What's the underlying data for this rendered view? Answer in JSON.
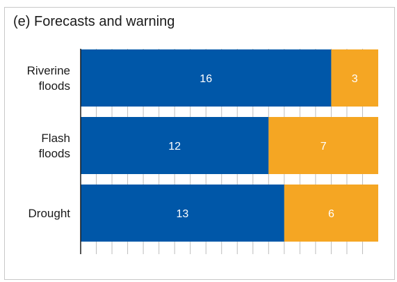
{
  "chart_data": {
    "type": "bar",
    "orientation": "horizontal",
    "stacked": true,
    "title": "(e) Forecasts and warning",
    "xlabel": "",
    "ylabel": "",
    "categories": [
      [
        "Riverine",
        "floods"
      ],
      [
        "Flash",
        "floods"
      ],
      [
        "Drought"
      ]
    ],
    "series": [
      {
        "values": [
          16,
          12,
          13
        ],
        "color": "#0057a8"
      },
      {
        "values": [
          3,
          7,
          6
        ],
        "color": "#f5a623"
      }
    ],
    "xlim": [
      0,
      19
    ],
    "grid": true,
    "legend": "none"
  }
}
